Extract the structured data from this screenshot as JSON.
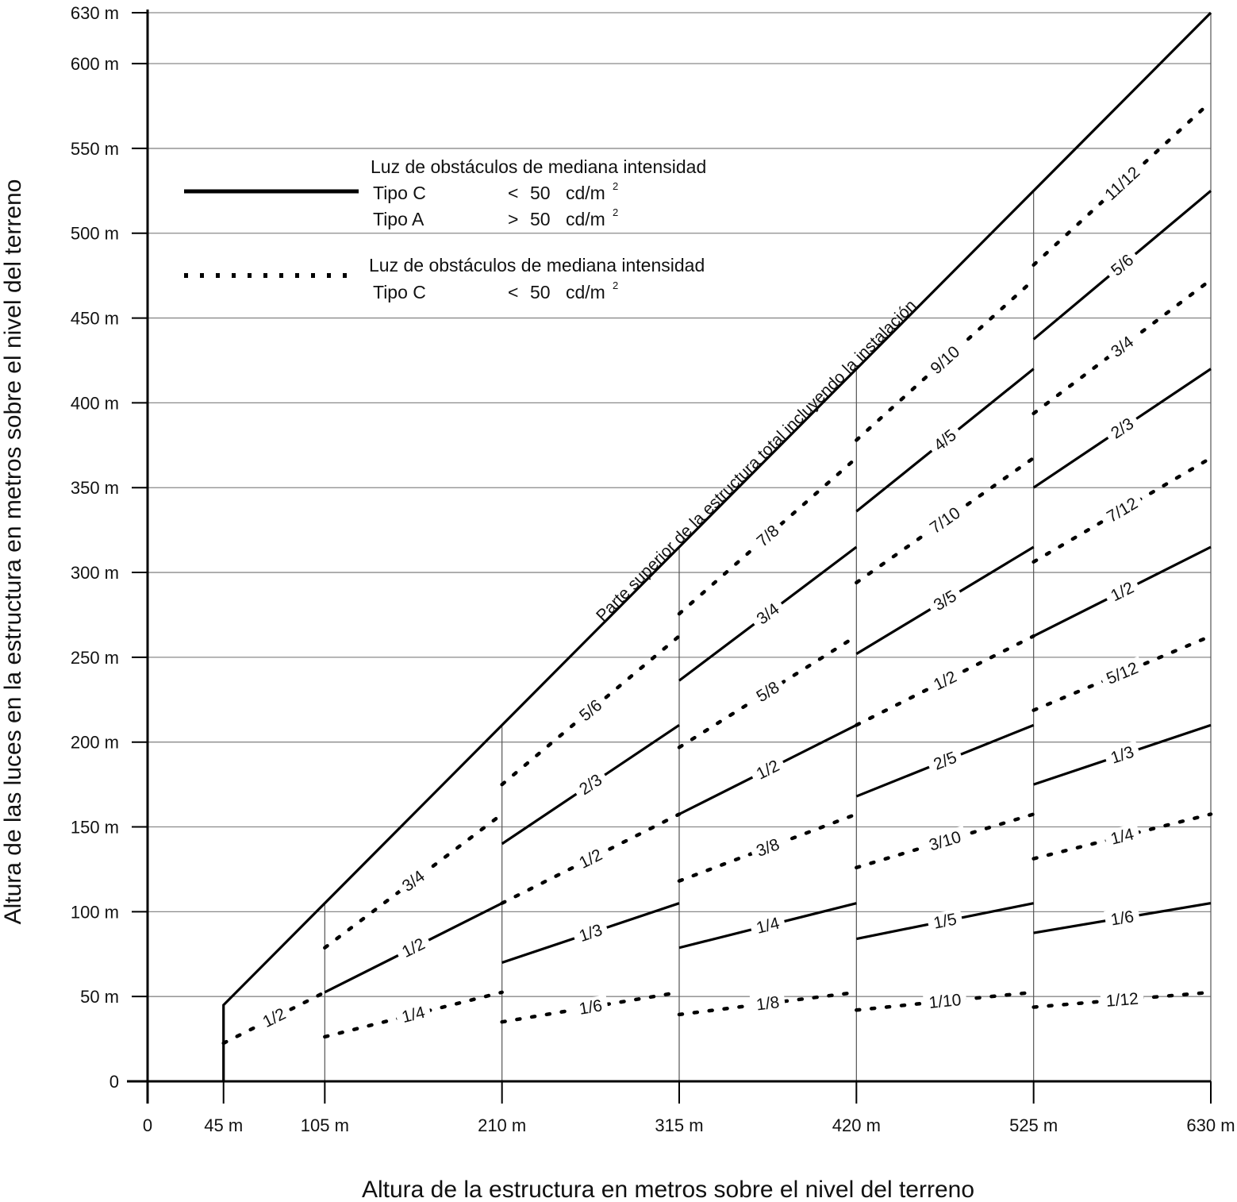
{
  "chart_data": {
    "type": "line",
    "xlabel": "Altura de la estructura en metros sobre el nivel del terreno",
    "ylabel": "Altura de las luces en la estructura en metros sobre el nivel del terreno",
    "xlim": [
      0,
      630
    ],
    "ylim": [
      0,
      630
    ],
    "grid": "horizontal",
    "x_ticks": [
      {
        "value": 0,
        "label": "0"
      },
      {
        "value": 45,
        "label": "45 m"
      },
      {
        "value": 105,
        "label": "105 m"
      },
      {
        "value": 210,
        "label": "210 m"
      },
      {
        "value": 315,
        "label": "315 m"
      },
      {
        "value": 420,
        "label": "420 m"
      },
      {
        "value": 525,
        "label": "525 m"
      },
      {
        "value": 630,
        "label": "630 m"
      }
    ],
    "y_ticks": [
      {
        "value": 0,
        "label": "0"
      },
      {
        "value": 50,
        "label": "50 m"
      },
      {
        "value": 100,
        "label": "100 m"
      },
      {
        "value": 150,
        "label": "150 m"
      },
      {
        "value": 200,
        "label": "200 m"
      },
      {
        "value": 250,
        "label": "250 m"
      },
      {
        "value": 300,
        "label": "300 m"
      },
      {
        "value": 350,
        "label": "350 m"
      },
      {
        "value": 400,
        "label": "400 m"
      },
      {
        "value": 450,
        "label": "450 m"
      },
      {
        "value": 500,
        "label": "500 m"
      },
      {
        "value": 550,
        "label": "550 m"
      },
      {
        "value": 600,
        "label": "600 m"
      },
      {
        "value": 630,
        "label": "630 m"
      }
    ],
    "segment_boundaries": [
      105,
      210,
      315,
      420,
      525,
      630
    ],
    "top_line": {
      "label": "Parte superior de la estructura total incluyendo la instalación",
      "x": [
        45,
        45,
        630
      ],
      "y": [
        0,
        45,
        630
      ]
    },
    "segments": [
      {
        "x0": 45,
        "x1": 105,
        "lines": [
          {
            "style": "dotted",
            "label": "1/2",
            "fraction": 0.5
          }
        ]
      },
      {
        "x0": 105,
        "x1": 210,
        "lines": [
          {
            "style": "dotted",
            "label": "1/4",
            "fraction": 0.25
          },
          {
            "style": "solid",
            "label": "1/2",
            "fraction": 0.5
          },
          {
            "style": "dotted",
            "label": "3/4",
            "fraction": 0.75
          }
        ]
      },
      {
        "x0": 210,
        "x1": 315,
        "lines": [
          {
            "style": "dotted",
            "label": "1/6",
            "fraction": 0.1667
          },
          {
            "style": "solid",
            "label": "1/3",
            "fraction": 0.3333
          },
          {
            "style": "dotted",
            "label": "1/2",
            "fraction": 0.5
          },
          {
            "style": "solid",
            "label": "2/3",
            "fraction": 0.6667
          },
          {
            "style": "dotted",
            "label": "5/6",
            "fraction": 0.8333
          }
        ]
      },
      {
        "x0": 315,
        "x1": 420,
        "lines": [
          {
            "style": "dotted",
            "label": "1/8",
            "fraction": 0.125
          },
          {
            "style": "solid",
            "label": "1/4",
            "fraction": 0.25
          },
          {
            "style": "dotted",
            "label": "3/8",
            "fraction": 0.375
          },
          {
            "style": "solid",
            "label": "1/2",
            "fraction": 0.5
          },
          {
            "style": "dotted",
            "label": "5/8",
            "fraction": 0.625
          },
          {
            "style": "solid",
            "label": "3/4",
            "fraction": 0.75
          },
          {
            "style": "dotted",
            "label": "7/8",
            "fraction": 0.875
          }
        ]
      },
      {
        "x0": 420,
        "x1": 525,
        "lines": [
          {
            "style": "dotted",
            "label": "1/10",
            "fraction": 0.1
          },
          {
            "style": "solid",
            "label": "1/5",
            "fraction": 0.2
          },
          {
            "style": "dotted",
            "label": "3/10",
            "fraction": 0.3
          },
          {
            "style": "solid",
            "label": "2/5",
            "fraction": 0.4
          },
          {
            "style": "dotted",
            "label": "1/2",
            "fraction": 0.5
          },
          {
            "style": "solid",
            "label": "3/5",
            "fraction": 0.6
          },
          {
            "style": "dotted",
            "label": "7/10",
            "fraction": 0.7
          },
          {
            "style": "solid",
            "label": "4/5",
            "fraction": 0.8
          },
          {
            "style": "dotted",
            "label": "9/10",
            "fraction": 0.9
          }
        ]
      },
      {
        "x0": 525,
        "x1": 630,
        "lines": [
          {
            "style": "dotted",
            "label": "1/12",
            "fraction": 0.0833
          },
          {
            "style": "solid",
            "label": "1/6",
            "fraction": 0.1667
          },
          {
            "style": "dotted",
            "label": "1/4",
            "fraction": 0.25
          },
          {
            "style": "solid",
            "label": "1/3",
            "fraction": 0.3333
          },
          {
            "style": "dotted",
            "label": "5/12",
            "fraction": 0.4167
          },
          {
            "style": "solid",
            "label": "1/2",
            "fraction": 0.5
          },
          {
            "style": "dotted",
            "label": "7/12",
            "fraction": 0.5833
          },
          {
            "style": "solid",
            "label": "2/3",
            "fraction": 0.6667
          },
          {
            "style": "dotted",
            "label": "3/4",
            "fraction": 0.75
          },
          {
            "style": "solid",
            "label": "5/6",
            "fraction": 0.8333
          },
          {
            "style": "dotted",
            "label": "11/12",
            "fraction": 0.9167
          }
        ]
      }
    ]
  },
  "legend": {
    "solid": {
      "style": "solid",
      "title": "Luz de obstáculos de mediana intensidad",
      "rows": [
        {
          "type": "Tipo C",
          "op": "<",
          "value": "50",
          "unit": "cd/m",
          "sup": "2"
        },
        {
          "type": "Tipo A",
          "op": ">",
          "value": "50",
          "unit": "cd/m",
          "sup": "2"
        }
      ]
    },
    "dotted": {
      "style": "dotted",
      "title": "Luz de obstáculos de mediana intensidad",
      "rows": [
        {
          "type": "Tipo C",
          "op": "<",
          "value": "50",
          "unit": "cd/m",
          "sup": "2"
        }
      ]
    }
  }
}
